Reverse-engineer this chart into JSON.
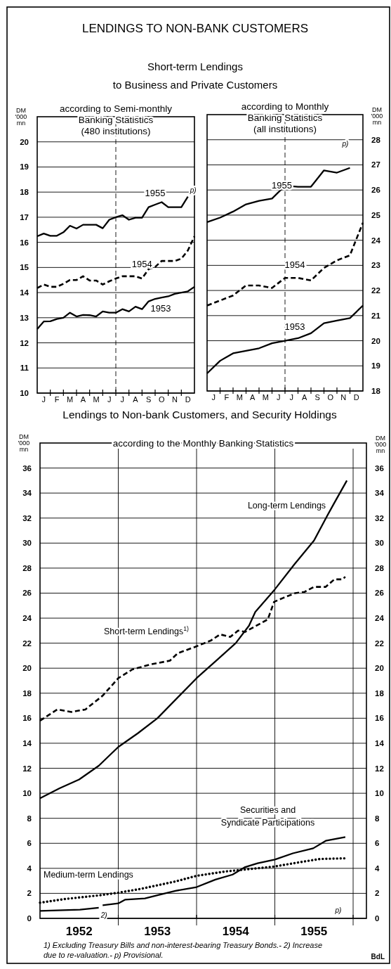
{
  "chart_data": [
    {
      "type": "line",
      "title": "according to Semi-monthly\nBanking Statistics\n(480 institutions)",
      "ylabel": "DM '000 mn",
      "ylim": [
        10,
        21
      ],
      "yticks": [
        10,
        11,
        12,
        13,
        14,
        15,
        16,
        17,
        18,
        19,
        20
      ],
      "categories": [
        null,
        "J",
        null,
        "F",
        null,
        "M",
        null,
        "A",
        null,
        "M",
        null,
        "J",
        null,
        "J",
        null,
        "A",
        null,
        "S",
        null,
        "O",
        null,
        "N",
        null,
        "D",
        null
      ],
      "grid": "y",
      "annotations": [
        "LENDINGS TO NON-BANK CUSTOMERS",
        "Short-term Lendings\nto Business and Private Customers",
        {
          "text": "p)",
          "x": "D",
          "y": 17.82
        }
      ],
      "series": [
        {
          "name": "1955",
          "color": "#000000",
          "line_style": "solid",
          "values": [
            16.24,
            16.35,
            16.26,
            16.26,
            16.4,
            16.66,
            16.55,
            16.7,
            16.7,
            16.7,
            16.56,
            16.9,
            17.0,
            17.08,
            16.9,
            16.98,
            16.98,
            17.4,
            17.5,
            17.6,
            17.4,
            17.4,
            17.4,
            17.82,
            null
          ]
        },
        {
          "name": "1954",
          "color": "#000000",
          "line_style": "dashed",
          "values": [
            14.18,
            14.32,
            14.23,
            14.23,
            14.35,
            14.5,
            14.5,
            14.65,
            14.48,
            14.48,
            14.32,
            14.45,
            14.56,
            14.65,
            14.65,
            14.65,
            14.56,
            14.93,
            15.02,
            15.26,
            15.26,
            15.26,
            15.35,
            15.68,
            16.24
          ]
        },
        {
          "name": "1953",
          "color": "#000000",
          "line_style": "solid",
          "values": [
            12.55,
            12.85,
            12.86,
            12.95,
            13.0,
            13.2,
            13.05,
            13.11,
            13.1,
            13.05,
            13.25,
            13.2,
            13.2,
            13.34,
            13.25,
            13.44,
            13.34,
            13.65,
            13.75,
            13.8,
            13.85,
            13.95,
            14.0,
            14.05,
            14.23
          ]
        }
      ]
    },
    {
      "type": "line",
      "title": "according to Monthly\nBanking Statistics\n(all institutions)",
      "y2label": "DM '000 mn",
      "y2lim": [
        18,
        29
      ],
      "y2ticks": [
        18,
        19,
        20,
        21,
        22,
        23,
        24,
        25,
        26,
        27,
        28
      ],
      "categories": [
        null,
        "J",
        null,
        "F",
        null,
        "M",
        null,
        "A",
        null,
        "M",
        null,
        "J",
        null,
        "J",
        null,
        "A",
        null,
        "S",
        null,
        "O",
        null,
        "N",
        null,
        "D",
        null
      ],
      "grid": "y",
      "annotations": [
        "p)"
      ],
      "series": [
        {
          "name": "1955",
          "color": "#000000",
          "line_style": "solid",
          "axis": "y2",
          "values": [
            24.72,
            null,
            24.9,
            null,
            25.14,
            null,
            25.43,
            null,
            25.57,
            null,
            25.66,
            null,
            26.17,
            null,
            26.13,
            null,
            26.13,
            null,
            26.78,
            null,
            26.69,
            null,
            26.88,
            null,
            null
          ]
        },
        {
          "name": "1954",
          "color": "#000000",
          "line_style": "dashed",
          "axis": "y2",
          "values": [
            21.4,
            null,
            21.6,
            null,
            21.8,
            null,
            22.2,
            null,
            22.2,
            null,
            22.1,
            null,
            22.5,
            null,
            22.5,
            null,
            22.4,
            null,
            22.9,
            null,
            23.2,
            null,
            23.4,
            null,
            24.7
          ]
        },
        {
          "name": "1953",
          "color": "#000000",
          "line_style": "solid",
          "axis": "y2",
          "values": [
            18.7,
            null,
            19.2,
            null,
            19.5,
            null,
            19.6,
            null,
            19.7,
            null,
            19.9,
            null,
            20.0,
            null,
            20.1,
            null,
            20.3,
            null,
            20.7,
            null,
            20.8,
            null,
            20.9,
            null,
            21.4
          ]
        }
      ]
    },
    {
      "type": "line",
      "title": "Lendings to Non-bank Customers, and Security Holdings",
      "subtitle": "according to the Monthly Banking Statistics",
      "ylabel": "DM '000 mn",
      "y2label": "DM '000 mn",
      "xlim": [
        1952,
        1956.17
      ],
      "ylim": [
        0,
        38
      ],
      "yticks": [
        0,
        2,
        4,
        6,
        8,
        10,
        12,
        14,
        16,
        18,
        20,
        22,
        24,
        26,
        28,
        30,
        32,
        34,
        36
      ],
      "y2lim": [
        0,
        38
      ],
      "y2ticks": [
        0,
        2,
        4,
        6,
        8,
        10,
        12,
        14,
        16,
        18,
        20,
        22,
        24,
        26,
        28,
        30,
        32,
        34,
        36
      ],
      "xticks": [
        {
          "value": 1952.5,
          "label": "1952"
        },
        {
          "value": 1953,
          "label": null
        },
        {
          "value": 1953.5,
          "label": "1953"
        },
        {
          "value": 1954,
          "label": null
        },
        {
          "value": 1954.5,
          "label": "1954"
        },
        {
          "value": 1955,
          "label": null
        },
        {
          "value": 1955.5,
          "label": "1955"
        },
        {
          "value": 1956,
          "label": null
        }
      ],
      "grid": true,
      "annotations": [
        "1) Excluding Treasury Bills and non-interest-bearing Treasury Bonds.- 2) Increase\ndue to re-valuation.- p) Provisional.",
        "BdL",
        "p)",
        {
          "text": "2)",
          "x": 1952.75,
          "y": 0.85
        }
      ],
      "series": [
        {
          "name": "Long-term Lendings",
          "color": "#000000",
          "line_style": "solid",
          "x": [
            1952,
            1952.25,
            1952.5,
            1952.75,
            1953,
            1953.25,
            1953.5,
            1953.75,
            1954,
            1954.25,
            1954.5,
            1954.67,
            1954.75,
            1955,
            1955.25,
            1955.5,
            1955.67,
            1955.75,
            1955.92
          ],
          "values": [
            9.6,
            10.4,
            11.1,
            12.2,
            13.7,
            14.8,
            16.0,
            17.6,
            19.2,
            20.6,
            22.0,
            23.4,
            24.5,
            26.3,
            28.3,
            30.2,
            32.2,
            33.1,
            35.0
          ]
        },
        {
          "name": "Short-term Lendings$^{1)}$",
          "color": "#000000",
          "line_style": "dashed",
          "x": [
            1952,
            1952.22,
            1952.4,
            1952.58,
            1952.8,
            1953,
            1953.18,
            1953.41,
            1953.66,
            1953.76,
            1953.98,
            1954.18,
            1954.3,
            1954.43,
            1954.53,
            1954.62,
            1954.91,
            1954.99,
            1955.1,
            1955.26,
            1955.38,
            1955.5,
            1955.65,
            1955.76,
            1955.86,
            1955.9
          ],
          "values": [
            15.8,
            16.7,
            16.5,
            16.7,
            17.8,
            19.2,
            19.9,
            20.3,
            20.6,
            21.2,
            21.7,
            22.2,
            22.7,
            22.5,
            23.0,
            22.9,
            23.9,
            25.3,
            25.6,
            26.0,
            26.1,
            26.5,
            26.5,
            27.1,
            27.1,
            27.3
          ]
        },
        {
          "name": "Securities and\nSyndicate Participations",
          "color": "#000000",
          "line_style": "solid",
          "x": [
            1952,
            1952.51,
            1952.75,
            1952.77,
            1952.8,
            1953,
            1953.09,
            1953.34,
            1953.5,
            1953.73,
            1954,
            1954.24,
            1954.46,
            1954.62,
            1954.78,
            1955,
            1955.23,
            1955.49,
            1955.65,
            1955.9
          ],
          "values": [
            0.6,
            0.7,
            0.85,
            null,
            1.05,
            1.2,
            1.5,
            1.6,
            1.85,
            2.2,
            2.5,
            3.1,
            3.5,
            4.1,
            4.4,
            4.7,
            5.2,
            5.6,
            6.2,
            6.5
          ]
        },
        {
          "name": "Medium-term Lendings",
          "color": "#000000",
          "line_style": "dotted",
          "x": [
            1952,
            1952.32,
            1952.77,
            1953,
            1953.28,
            1953.73,
            1954,
            1954.37,
            1954.69,
            1955,
            1955.33,
            1955.58,
            1955.9
          ],
          "values": [
            1.25,
            1.55,
            1.85,
            2.05,
            2.35,
            2.95,
            3.4,
            3.75,
            3.95,
            4.15,
            4.5,
            4.75,
            4.8
          ]
        }
      ]
    }
  ]
}
